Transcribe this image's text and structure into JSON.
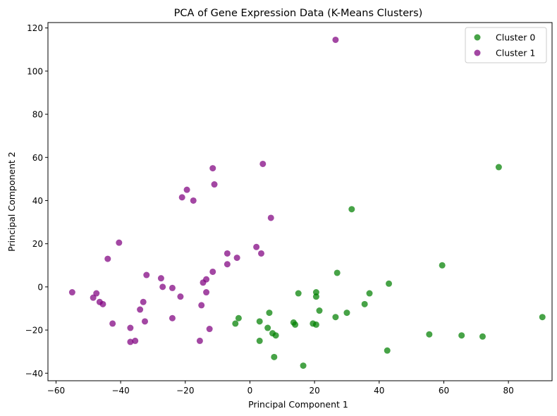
{
  "chart_data": {
    "type": "scatter",
    "title": "PCA of Gene Expression Data (K-Means Clusters)",
    "xlabel": "Principal Component 1",
    "ylabel": "Principal Component 2",
    "xlim": [
      -62.5,
      93.5
    ],
    "ylim": [
      -43.5,
      122.5
    ],
    "xticks": [
      -60,
      -40,
      -20,
      0,
      20,
      40,
      60,
      80
    ],
    "yticks": [
      -40,
      -20,
      0,
      20,
      40,
      60,
      80,
      100,
      120
    ],
    "grid": false,
    "legend_position": "top-right",
    "series": [
      {
        "name": "Cluster 0",
        "color": "#008000",
        "points": [
          [
            77,
            55.5
          ],
          [
            31.5,
            36
          ],
          [
            59.5,
            10
          ],
          [
            27,
            6.5
          ],
          [
            43,
            1.5
          ],
          [
            15,
            -3
          ],
          [
            20.5,
            -2.5
          ],
          [
            37,
            -3
          ],
          [
            20.5,
            -4.5
          ],
          [
            35.5,
            -8
          ],
          [
            21.5,
            -11
          ],
          [
            6,
            -12
          ],
          [
            30,
            -12
          ],
          [
            26.5,
            -14
          ],
          [
            90.5,
            -14
          ],
          [
            -3.5,
            -14.5
          ],
          [
            -4.5,
            -17
          ],
          [
            3,
            -16
          ],
          [
            13.5,
            -16.5
          ],
          [
            14,
            -17.5
          ],
          [
            19.5,
            -17
          ],
          [
            20.5,
            -17.5
          ],
          [
            5.5,
            -19
          ],
          [
            7,
            -21.5
          ],
          [
            8,
            -22.5
          ],
          [
            55.5,
            -22
          ],
          [
            65.5,
            -22.5
          ],
          [
            72,
            -23
          ],
          [
            3,
            -25
          ],
          [
            42.5,
            -29.5
          ],
          [
            7.5,
            -32.5
          ],
          [
            16.5,
            -36.5
          ]
        ]
      },
      {
        "name": "Cluster 1",
        "color": "#800080",
        "points": [
          [
            26.5,
            114.5
          ],
          [
            4,
            57
          ],
          [
            -11.5,
            55
          ],
          [
            -11,
            47.5
          ],
          [
            -19.5,
            45
          ],
          [
            -21,
            41.5
          ],
          [
            -17.5,
            40
          ],
          [
            6.5,
            32
          ],
          [
            -40.5,
            20.5
          ],
          [
            2,
            18.5
          ],
          [
            -44,
            13
          ],
          [
            -7,
            15.5
          ],
          [
            3.5,
            15.5
          ],
          [
            -4,
            13.5
          ],
          [
            -7,
            10.5
          ],
          [
            -11.5,
            7
          ],
          [
            -32,
            5.5
          ],
          [
            -27.5,
            4
          ],
          [
            -13.5,
            3.5
          ],
          [
            -14.5,
            2
          ],
          [
            -55,
            -2.5
          ],
          [
            -48.5,
            -5
          ],
          [
            -47.5,
            -3
          ],
          [
            -46.5,
            -7
          ],
          [
            -45.5,
            -8
          ],
          [
            -27,
            0
          ],
          [
            -24,
            -0.5
          ],
          [
            -13.5,
            -2.5
          ],
          [
            -21.5,
            -4.5
          ],
          [
            -33,
            -7
          ],
          [
            -15,
            -8.5
          ],
          [
            -34,
            -10.5
          ],
          [
            -32.5,
            -16
          ],
          [
            -42.5,
            -17
          ],
          [
            -24,
            -14.5
          ],
          [
            -37,
            -19
          ],
          [
            -12.5,
            -19.5
          ],
          [
            -37,
            -25.5
          ],
          [
            -35.5,
            -25
          ],
          [
            -15.5,
            -25
          ]
        ]
      }
    ]
  }
}
